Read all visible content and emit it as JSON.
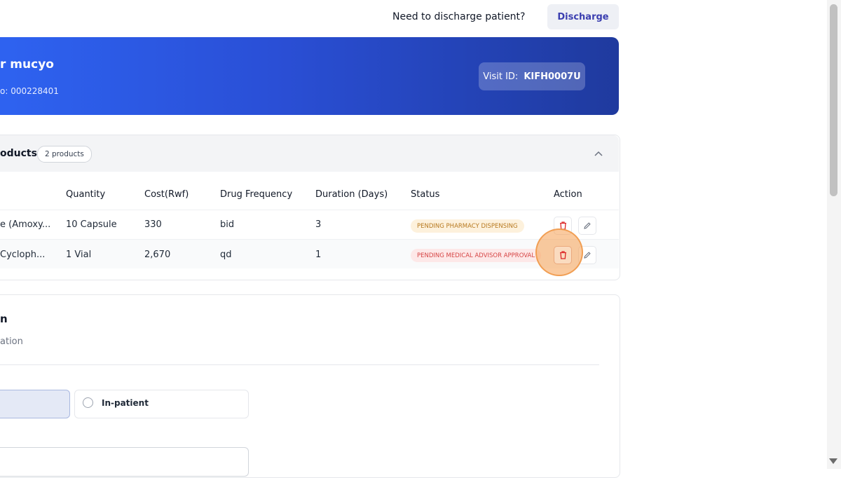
{
  "header": {
    "discharge_question": "Need to discharge patient?",
    "discharge_button": "Discharge"
  },
  "patient": {
    "name": "r mucyo",
    "number_text": "o: 000228401",
    "visit_label": "Visit ID:",
    "visit_id": "KIFH0007U"
  },
  "products": {
    "title": "oducts",
    "count_badge": "2 products",
    "columns": [
      "Quantity",
      "Cost(Rwf)",
      "Drug Frequency",
      "Duration (Days)",
      "Status",
      "Action"
    ],
    "rows": [
      {
        "name": "e (Amoxy...",
        "quantity": "10 Capsule",
        "cost": "330",
        "frequency": "bid",
        "duration": "3",
        "status": "PENDING PHARMACY DISPENSING"
      },
      {
        "name": "Cycloph...",
        "quantity": "1 Vial",
        "cost": "2,670",
        "frequency": "qd",
        "duration": "1",
        "status": "PENDING MEDICAL ADVISOR APPROVAL"
      }
    ]
  },
  "admission": {
    "title": "n",
    "subtitle": "ation",
    "option_inpatient": "In-patient"
  },
  "icons": {
    "delete": "trash-icon",
    "edit": "pencil-icon",
    "collapse": "chevron-up-icon"
  },
  "colors": {
    "banner_start": "#2e63f1",
    "banner_end": "#1f3a9e",
    "pending_pharmacy_text": "#b7791f",
    "pending_medical_text": "#d64545",
    "delete_icon": "#dc2626"
  }
}
